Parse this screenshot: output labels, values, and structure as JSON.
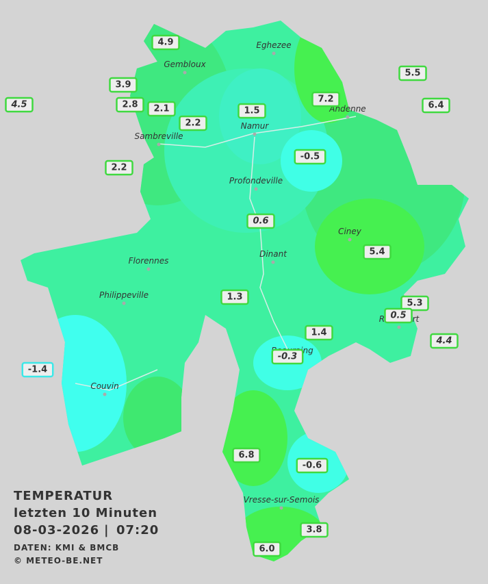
{
  "legend": {
    "title": "TEMPERATUR",
    "period": "letzten 10 Minuten",
    "date": "08-03-2026",
    "separator": "|",
    "time": "07:20",
    "source": "DATEN: KMI & BMCB",
    "copyright": "© METEO-BE.NET"
  },
  "cities": [
    "Eghezee",
    "Gembloux",
    "Andenne",
    "Namur",
    "Sambreville",
    "Profondeville",
    "Ciney",
    "Dinant",
    "Florennes",
    "Philippeville",
    "Rochefort",
    "Beauraing",
    "Couvin",
    "Vresse-sur-Semois"
  ],
  "stations": [
    "4.9",
    "5.5",
    "3.9",
    "4.5",
    "2.8",
    "2.1",
    "1.5",
    "7.2",
    "6.4",
    "2.2",
    "-0.5",
    "2.2",
    "0.6",
    "5.4",
    "1.3",
    "5.3",
    "0.5",
    "1.4",
    "4.4",
    "-0.3",
    "-1.4",
    "6.8",
    "-0.6",
    "3.8",
    "6.0"
  ]
}
